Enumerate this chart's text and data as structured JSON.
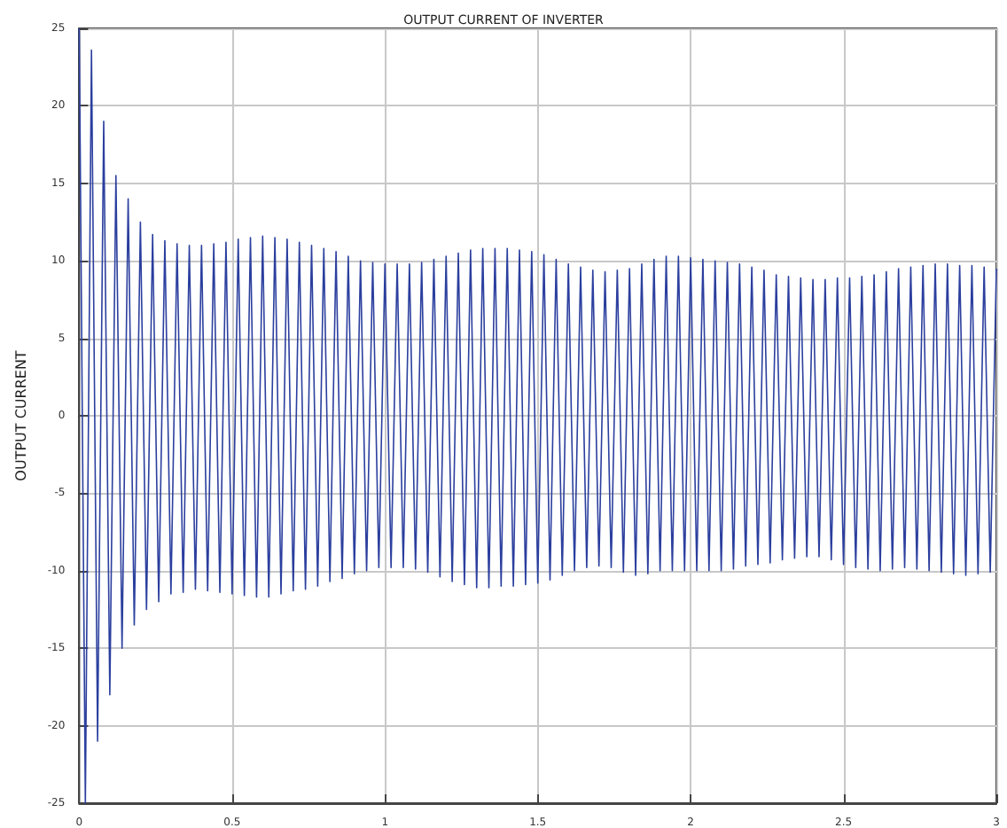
{
  "chart_data": {
    "type": "line",
    "title": "OUTPUT CURRENT OF INVERTER",
    "ylabel": "OUTPUT CURRENT",
    "x": [
      0,
      0.02,
      0.04,
      0.06,
      0.08,
      0.1,
      0.12,
      0.14,
      0.16,
      0.18,
      0.2,
      0.22,
      0.24,
      0.26,
      0.28,
      0.3,
      0.32,
      0.34,
      0.36,
      0.38,
      0.4,
      0.42,
      0.44,
      0.46,
      0.48,
      0.5,
      0.52,
      0.54,
      0.56,
      0.58,
      0.6,
      0.62,
      0.64,
      0.66,
      0.68,
      0.7,
      0.72,
      0.74,
      0.76,
      0.78,
      0.8,
      0.82,
      0.84,
      0.86,
      0.88,
      0.9,
      0.92,
      0.94,
      0.96,
      0.98,
      1,
      1.02,
      1.04,
      1.06,
      1.08,
      1.1,
      1.12,
      1.14,
      1.16,
      1.18,
      1.2,
      1.22,
      1.24,
      1.26,
      1.28,
      1.3,
      1.32,
      1.34,
      1.36,
      1.38,
      1.4,
      1.42,
      1.44,
      1.46,
      1.48,
      1.5,
      1.52,
      1.54,
      1.56,
      1.58,
      1.6,
      1.62,
      1.64,
      1.66,
      1.68,
      1.7,
      1.72,
      1.74,
      1.76,
      1.78,
      1.8,
      1.82,
      1.84,
      1.86,
      1.88,
      1.9,
      1.92,
      1.94,
      1.96,
      1.98,
      2,
      2.02,
      2.04,
      2.06,
      2.08,
      2.1,
      2.12,
      2.14,
      2.16,
      2.18,
      2.2,
      2.22,
      2.24,
      2.26,
      2.28,
      2.3,
      2.32,
      2.34,
      2.36,
      2.38,
      2.4,
      2.42,
      2.44,
      2.46,
      2.48,
      2.5,
      2.52,
      2.54,
      2.56,
      2.58,
      2.6,
      2.62,
      2.64,
      2.66,
      2.68,
      2.7,
      2.72,
      2.74,
      2.76,
      2.78,
      2.8,
      2.82,
      2.84,
      2.86,
      2.88,
      2.9,
      2.92,
      2.94,
      2.96,
      2.98,
      3
    ],
    "series": [
      {
        "color": "#2b3f9e",
        "values": [
          25,
          -25,
          23.6,
          -21,
          19,
          -18,
          15.5,
          -15,
          14,
          -13.5,
          12.5,
          -12.5,
          11.7,
          -12,
          11.3,
          -11.5,
          11.1,
          -11.4,
          11,
          -11.2,
          11,
          -11.3,
          11.1,
          -11.4,
          11.2,
          -11.5,
          11.4,
          -11.6,
          11.5,
          -11.7,
          11.6,
          -11.7,
          11.5,
          -11.5,
          11.4,
          -11.3,
          11.2,
          -11.2,
          11,
          -11,
          10.8,
          -10.7,
          10.6,
          -10.5,
          10.3,
          -10.2,
          10,
          -10,
          9.9,
          -9.8,
          9.8,
          -9.8,
          9.8,
          -9.8,
          9.8,
          -9.9,
          9.9,
          -10.1,
          10.1,
          -10.4,
          10.3,
          -10.7,
          10.5,
          -10.9,
          10.7,
          -11.1,
          10.8,
          -11.1,
          10.8,
          -11,
          10.8,
          -11,
          10.7,
          -10.9,
          10.6,
          -10.8,
          10.4,
          -10.6,
          10.1,
          -10.3,
          9.8,
          -10,
          9.6,
          -9.8,
          9.4,
          -9.7,
          9.3,
          -9.8,
          9.4,
          -10.1,
          9.5,
          -10.3,
          9.8,
          -10.2,
          10.1,
          -10,
          10.3,
          -10,
          10.3,
          -10,
          10.2,
          -10,
          10.1,
          -10,
          10,
          -10,
          9.9,
          -9.9,
          9.8,
          -9.7,
          9.6,
          -9.6,
          9.4,
          -9.5,
          9.1,
          -9.3,
          9,
          -9.2,
          8.9,
          -9.1,
          8.8,
          -9.1,
          8.8,
          -9.3,
          8.9,
          -9.6,
          8.9,
          -9.8,
          9,
          -9.9,
          9.1,
          -10,
          9.3,
          -9.9,
          9.5,
          -9.8,
          9.6,
          -9.9,
          9.7,
          -10,
          9.8,
          -10.1,
          9.8,
          -10.2,
          9.7,
          -10.3,
          9.7,
          -10.2,
          9.6,
          -10.1,
          9.5
        ]
      }
    ],
    "xlim": [
      0,
      3
    ],
    "xticks": [
      0,
      0.5,
      1,
      1.5,
      2,
      2.5,
      3
    ],
    "ylim": [
      -25,
      25
    ],
    "yticks": [
      -25,
      -20,
      -15,
      -10,
      -5,
      0,
      5,
      10,
      15,
      20,
      25
    ],
    "grid": true,
    "marker": "none",
    "line_style": "solid"
  }
}
